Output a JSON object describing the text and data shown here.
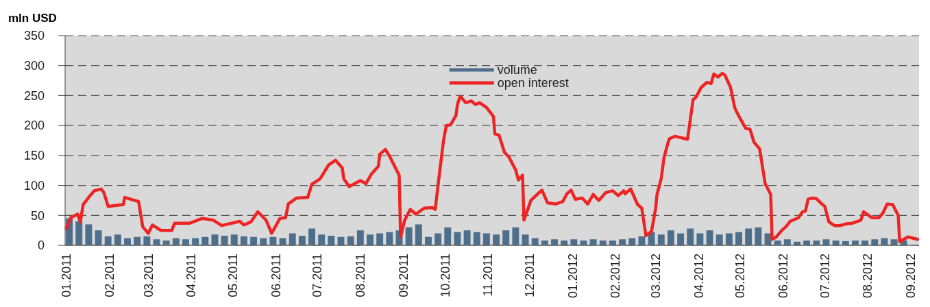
{
  "chart_data": {
    "type": "bar",
    "ylabel": "mln USD",
    "legend": "top",
    "grid": "y",
    "line_style": "solid",
    "marker": "none",
    "xlim": [
      "2010-12-31",
      "2012-09-07"
    ],
    "ylim": [
      0,
      350
    ],
    "yticks": [
      0,
      50,
      100,
      150,
      200,
      250,
      300,
      350
    ],
    "xticks": [
      {
        "value": "2011-01-01",
        "label": "01.2011"
      },
      {
        "value": "2011-02-01",
        "label": "02.2011"
      },
      {
        "value": "2011-03-01",
        "label": "03.2011"
      },
      {
        "value": "2011-04-01",
        "label": "04.2011"
      },
      {
        "value": "2011-05-01",
        "label": "05.2011"
      },
      {
        "value": "2011-06-01",
        "label": "06.2011"
      },
      {
        "value": "2011-07-01",
        "label": "07.2011"
      },
      {
        "value": "2011-08-01",
        "label": "08.2011"
      },
      {
        "value": "2011-09-01",
        "label": "09.2011"
      },
      {
        "value": "2011-10-01",
        "label": "10.2011"
      },
      {
        "value": "2011-11-01",
        "label": "11.2011"
      },
      {
        "value": "2011-12-01",
        "label": "12.2011"
      },
      {
        "value": "2012-01-01",
        "label": "01.2012"
      },
      {
        "value": "2012-02-01",
        "label": "02.2012"
      },
      {
        "value": "2012-03-01",
        "label": "03.2012"
      },
      {
        "value": "2012-04-01",
        "label": "04.2012"
      },
      {
        "value": "2012-05-01",
        "label": "05.2012"
      },
      {
        "value": "2012-06-01",
        "label": "06.2012"
      },
      {
        "value": "2012-07-01",
        "label": "07.2012"
      },
      {
        "value": "2012-08-01",
        "label": "08.2012"
      },
      {
        "value": "2012-09-01",
        "label": "09.2012"
      }
    ],
    "series": [
      {
        "name": "volume",
        "color": "#4e6f8c",
        "x": [
          "2011-01-03",
          "2011-01-10",
          "2011-01-17",
          "2011-01-24",
          "2011-01-31",
          "2011-02-07",
          "2011-02-14",
          "2011-02-21",
          "2011-02-28",
          "2011-03-07",
          "2011-03-14",
          "2011-03-21",
          "2011-03-28",
          "2011-04-04",
          "2011-04-11",
          "2011-04-18",
          "2011-04-25",
          "2011-05-02",
          "2011-05-09",
          "2011-05-16",
          "2011-05-23",
          "2011-05-30",
          "2011-06-06",
          "2011-06-13",
          "2011-06-20",
          "2011-06-27",
          "2011-07-04",
          "2011-07-11",
          "2011-07-18",
          "2011-07-25",
          "2011-08-01",
          "2011-08-08",
          "2011-08-15",
          "2011-08-22",
          "2011-08-29",
          "2011-09-05",
          "2011-09-12",
          "2011-09-19",
          "2011-09-26",
          "2011-10-03",
          "2011-10-10",
          "2011-10-17",
          "2011-10-24",
          "2011-10-31",
          "2011-11-07",
          "2011-11-14",
          "2011-11-21",
          "2011-11-28",
          "2011-12-05",
          "2011-12-12",
          "2011-12-19",
          "2011-12-26",
          "2012-01-02",
          "2012-01-09",
          "2012-01-16",
          "2012-01-23",
          "2012-01-30",
          "2012-02-06",
          "2012-02-13",
          "2012-02-20",
          "2012-02-27",
          "2012-03-05",
          "2012-03-12",
          "2012-03-19",
          "2012-03-26",
          "2012-04-02",
          "2012-04-09",
          "2012-04-16",
          "2012-04-23",
          "2012-04-30",
          "2012-05-07",
          "2012-05-14",
          "2012-05-21",
          "2012-05-28",
          "2012-06-04",
          "2012-06-11",
          "2012-06-18",
          "2012-06-25",
          "2012-07-02",
          "2012-07-09",
          "2012-07-16",
          "2012-07-23",
          "2012-07-30",
          "2012-08-06",
          "2012-08-13",
          "2012-08-20",
          "2012-08-27"
        ],
        "values": [
          45,
          40,
          35,
          25,
          15,
          18,
          12,
          14,
          15,
          10,
          8,
          12,
          10,
          12,
          14,
          18,
          16,
          18,
          15,
          14,
          12,
          14,
          12,
          20,
          16,
          28,
          18,
          16,
          14,
          15,
          25,
          18,
          20,
          22,
          25,
          30,
          35,
          14,
          20,
          30,
          22,
          25,
          22,
          20,
          18,
          25,
          30,
          18,
          12,
          8,
          10,
          8,
          10,
          8,
          10,
          8,
          8,
          10,
          12,
          15,
          22,
          18,
          25,
          20,
          28,
          20,
          25,
          18,
          20,
          22,
          28,
          30,
          20,
          8,
          10,
          6,
          8,
          8,
          10,
          8,
          7,
          8,
          8,
          10,
          12,
          10,
          8
        ]
      },
      {
        "name": "open interest",
        "type": "line",
        "color": "#ee2424",
        "x": [
          "2011-01-01",
          "2011-01-04",
          "2011-01-09",
          "2011-01-11",
          "2011-01-13",
          "2011-01-17",
          "2011-01-21",
          "2011-01-26",
          "2011-01-28",
          "2011-01-31",
          "2011-02-11",
          "2011-02-12",
          "2011-02-22",
          "2011-02-25",
          "2011-03-01",
          "2011-03-04",
          "2011-03-10",
          "2011-03-18",
          "2011-03-20",
          "2011-03-31",
          "2011-04-09",
          "2011-04-17",
          "2011-04-23",
          "2011-05-06",
          "2011-05-09",
          "2011-05-14",
          "2011-05-19",
          "2011-05-25",
          "2011-05-29",
          "2011-06-04",
          "2011-06-08",
          "2011-06-10",
          "2011-06-16",
          "2011-06-24",
          "2011-06-27",
          "2011-07-03",
          "2011-07-09",
          "2011-07-14",
          "2011-07-19",
          "2011-07-20",
          "2011-07-24",
          "2011-08-01",
          "2011-08-05",
          "2011-08-09",
          "2011-08-14",
          "2011-08-15",
          "2011-08-19",
          "2011-08-22",
          "2011-08-29",
          "2011-08-30",
          "2011-09-02",
          "2011-09-06",
          "2011-09-10",
          "2011-09-16",
          "2011-09-22",
          "2011-09-24",
          "2011-09-27",
          "2011-09-30",
          "2011-10-02",
          "2011-10-05",
          "2011-10-09",
          "2011-10-10",
          "2011-10-12",
          "2011-10-16",
          "2011-10-20",
          "2011-10-23",
          "2011-10-26",
          "2011-10-31",
          "2011-11-05",
          "2011-11-06",
          "2011-11-09",
          "2011-11-13",
          "2011-11-16",
          "2011-11-21",
          "2011-11-23",
          "2011-11-26",
          "2011-11-27",
          "2011-12-02",
          "2011-12-07",
          "2011-12-10",
          "2011-12-14",
          "2011-12-20",
          "2011-12-25",
          "2011-12-28",
          "2011-12-31",
          "2012-01-03",
          "2012-01-08",
          "2012-01-12",
          "2012-01-16",
          "2012-01-20",
          "2012-01-25",
          "2012-01-30",
          "2012-02-03",
          "2012-02-07",
          "2012-02-08",
          "2012-02-12",
          "2012-02-17",
          "2012-02-20",
          "2012-02-23",
          "2012-02-27",
          "2012-03-01",
          "2012-03-02",
          "2012-03-05",
          "2012-03-07",
          "2012-03-10",
          "2012-03-11",
          "2012-03-15",
          "2012-03-24",
          "2012-03-28",
          "2012-03-30",
          "2012-04-03",
          "2012-04-07",
          "2012-04-10",
          "2012-04-12",
          "2012-04-15",
          "2012-04-18",
          "2012-04-20",
          "2012-04-24",
          "2012-04-27",
          "2012-04-29",
          "2012-05-05",
          "2012-05-08",
          "2012-05-11",
          "2012-05-15",
          "2012-05-19",
          "2012-05-23",
          "2012-05-24",
          "2012-05-27",
          "2012-05-31",
          "2012-06-03",
          "2012-06-06",
          "2012-06-12",
          "2012-06-15",
          "2012-06-17",
          "2012-06-19",
          "2012-06-22",
          "2012-06-25",
          "2012-06-28",
          "2012-07-01",
          "2012-07-04",
          "2012-07-08",
          "2012-07-12",
          "2012-07-17",
          "2012-07-21",
          "2012-07-27",
          "2012-07-29",
          "2012-08-04",
          "2012-08-09",
          "2012-08-12",
          "2012-08-15",
          "2012-08-19",
          "2012-08-23",
          "2012-08-24",
          "2012-08-30",
          "2012-09-06"
        ],
        "values": [
          28,
          46,
          52,
          39,
          68,
          80,
          91,
          94,
          88,
          65,
          68,
          80,
          73,
          31,
          20,
          34,
          25,
          25,
          37,
          37,
          45,
          42,
          33,
          40,
          34,
          39,
          56,
          42,
          20,
          45,
          46,
          69,
          79,
          80,
          102,
          111,
          134,
          142,
          129,
          111,
          98,
          108,
          103,
          119,
          132,
          152,
          160,
          149,
          117,
          14,
          42,
          60,
          52,
          62,
          63,
          60,
          119,
          175,
          200,
          201,
          217,
          235,
          249,
          238,
          241,
          235,
          238,
          230,
          215,
          186,
          184,
          155,
          148,
          126,
          109,
          117,
          42,
          75,
          86,
          92,
          71,
          69,
          73,
          86,
          92,
          77,
          79,
          69,
          85,
          75,
          88,
          91,
          83,
          91,
          86,
          94,
          68,
          62,
          16,
          23,
          62,
          85,
          111,
          146,
          172,
          178,
          182,
          177,
          243,
          247,
          264,
          272,
          270,
          286,
          281,
          287,
          284,
          264,
          230,
          220,
          195,
          194,
          172,
          161,
          103,
          85,
          10,
          14,
          25,
          31,
          40,
          46,
          56,
          57,
          77,
          79,
          78,
          71,
          65,
          39,
          33,
          33,
          36,
          37,
          42,
          56,
          46,
          46,
          54,
          69,
          68,
          50,
          6,
          14,
          10
        ]
      }
    ]
  }
}
